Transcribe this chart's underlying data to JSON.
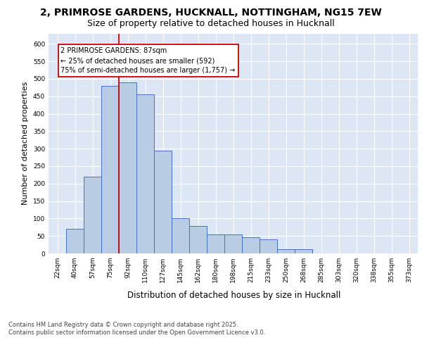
{
  "title1": "2, PRIMROSE GARDENS, HUCKNALL, NOTTINGHAM, NG15 7EW",
  "title2": "Size of property relative to detached houses in Hucknall",
  "xlabel": "Distribution of detached houses by size in Hucknall",
  "ylabel": "Number of detached properties",
  "bin_labels": [
    "22sqm",
    "40sqm",
    "57sqm",
    "75sqm",
    "92sqm",
    "110sqm",
    "127sqm",
    "145sqm",
    "162sqm",
    "180sqm",
    "198sqm",
    "215sqm",
    "233sqm",
    "250sqm",
    "268sqm",
    "285sqm",
    "303sqm",
    "320sqm",
    "338sqm",
    "355sqm",
    "373sqm"
  ],
  "bar_heights": [
    0,
    70,
    220,
    480,
    490,
    455,
    295,
    100,
    78,
    55,
    55,
    46,
    40,
    12,
    12,
    0,
    0,
    0,
    0,
    0,
    0
  ],
  "bar_color": "#b8cce4",
  "bar_edge_color": "#4472c4",
  "vline_x": 3.5,
  "vline_color": "#cc0000",
  "annotation_text": "2 PRIMROSE GARDENS: 87sqm\n← 25% of detached houses are smaller (592)\n75% of semi-detached houses are larger (1,757) →",
  "annotation_box_facecolor": "#ffffff",
  "annotation_box_edgecolor": "#cc0000",
  "ylim": [
    0,
    630
  ],
  "yticks": [
    0,
    50,
    100,
    150,
    200,
    250,
    300,
    350,
    400,
    450,
    500,
    550,
    600
  ],
  "grid_color": "#ffffff",
  "background_color": "#dce6f5",
  "footer_text": "Contains HM Land Registry data © Crown copyright and database right 2025.\nContains public sector information licensed under the Open Government Licence v3.0.",
  "title_fontsize": 10,
  "subtitle_fontsize": 9,
  "annot_fontsize": 7,
  "ylabel_fontsize": 8,
  "xlabel_fontsize": 8.5,
  "tick_fontsize": 6.5,
  "footer_fontsize": 6
}
